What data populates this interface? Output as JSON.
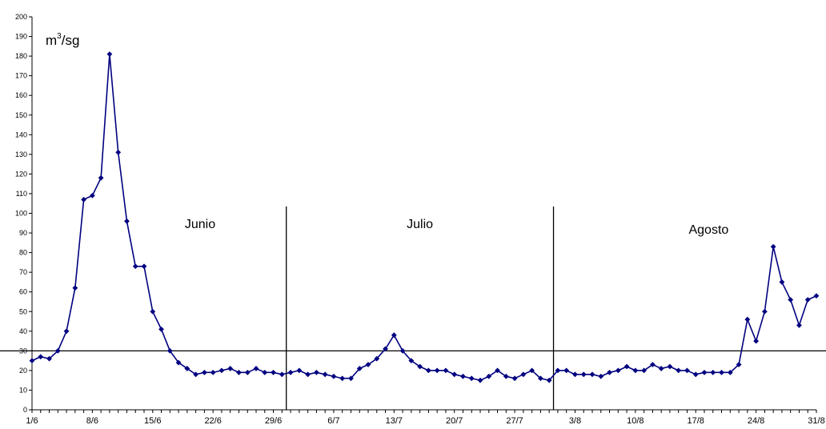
{
  "chart_data": {
    "type": "line",
    "unit_label": {
      "base": "m",
      "sup": "3",
      "rest": "/sg"
    },
    "ylim": [
      0,
      200
    ],
    "y_ticks": [
      0,
      10,
      20,
      30,
      40,
      50,
      60,
      70,
      80,
      90,
      100,
      110,
      120,
      130,
      140,
      150,
      160,
      170,
      180,
      190,
      200
    ],
    "x_tick_labels": [
      {
        "day": 1,
        "label": "1/6"
      },
      {
        "day": 8,
        "label": "8/6"
      },
      {
        "day": 15,
        "label": "15/6"
      },
      {
        "day": 22,
        "label": "22/6"
      },
      {
        "day": 29,
        "label": "29/6"
      },
      {
        "day": 36,
        "label": "6/7"
      },
      {
        "day": 43,
        "label": "13/7"
      },
      {
        "day": 50,
        "label": "20/7"
      },
      {
        "day": 57,
        "label": "27/7"
      },
      {
        "day": 64,
        "label": "3/8"
      },
      {
        "day": 71,
        "label": "10/8"
      },
      {
        "day": 78,
        "label": "17/8"
      },
      {
        "day": 85,
        "label": "24/8"
      },
      {
        "day": 92,
        "label": "31/8"
      }
    ],
    "threshold": 30,
    "month_separators": [
      30.5,
      61.5
    ],
    "month_labels": [
      {
        "label": "Junio",
        "day": 20.5,
        "y": 95
      },
      {
        "label": "Julio",
        "day": 46,
        "y": 95
      },
      {
        "label": "Agosto",
        "day": 79.5,
        "y": 92
      }
    ],
    "series": [
      {
        "color": "#000080",
        "values": [
          25,
          27,
          26,
          30,
          40,
          62,
          107,
          109,
          118,
          181,
          131,
          96,
          73,
          73,
          50,
          41,
          30,
          24,
          21,
          18,
          19,
          19,
          20,
          21,
          19,
          19,
          21,
          19,
          19,
          18,
          19,
          20,
          18,
          19,
          18,
          17,
          16,
          16,
          21,
          23,
          26,
          31,
          38,
          30,
          25,
          22,
          20,
          20,
          20,
          18,
          17,
          16,
          15,
          17,
          20,
          17,
          16,
          18,
          20,
          16,
          15,
          20,
          20,
          18,
          18,
          18,
          17,
          19,
          20,
          22,
          20,
          20,
          23,
          21,
          22,
          20,
          20,
          18,
          19,
          19,
          19,
          19,
          23,
          46,
          35,
          50,
          83,
          65,
          56,
          43,
          56,
          58
        ]
      }
    ]
  }
}
